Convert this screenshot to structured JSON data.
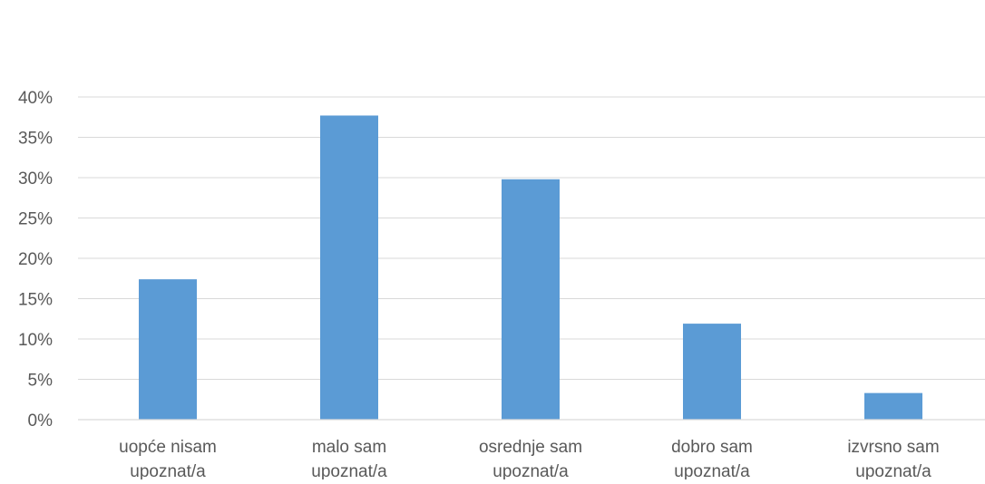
{
  "chart_data": {
    "type": "bar",
    "title": "",
    "xlabel": "",
    "ylabel": "",
    "categories": [
      [
        "uopće nisam",
        "upoznat/a"
      ],
      [
        "malo sam",
        "upoznat/a"
      ],
      [
        "osrednje sam",
        "upoznat/a"
      ],
      [
        "dobro sam",
        "upoznat/a"
      ],
      [
        "izvrsno sam",
        "upoznat/a"
      ]
    ],
    "values": [
      17.4,
      37.7,
      29.8,
      11.9,
      3.3
    ],
    "ylim": [
      0,
      40
    ],
    "yticks": [
      "0%",
      "5%",
      "10%",
      "15%",
      "20%",
      "25%",
      "30%",
      "35%",
      "40%"
    ],
    "bar_color": "#5b9bd5",
    "grid": true,
    "legend": "none"
  }
}
